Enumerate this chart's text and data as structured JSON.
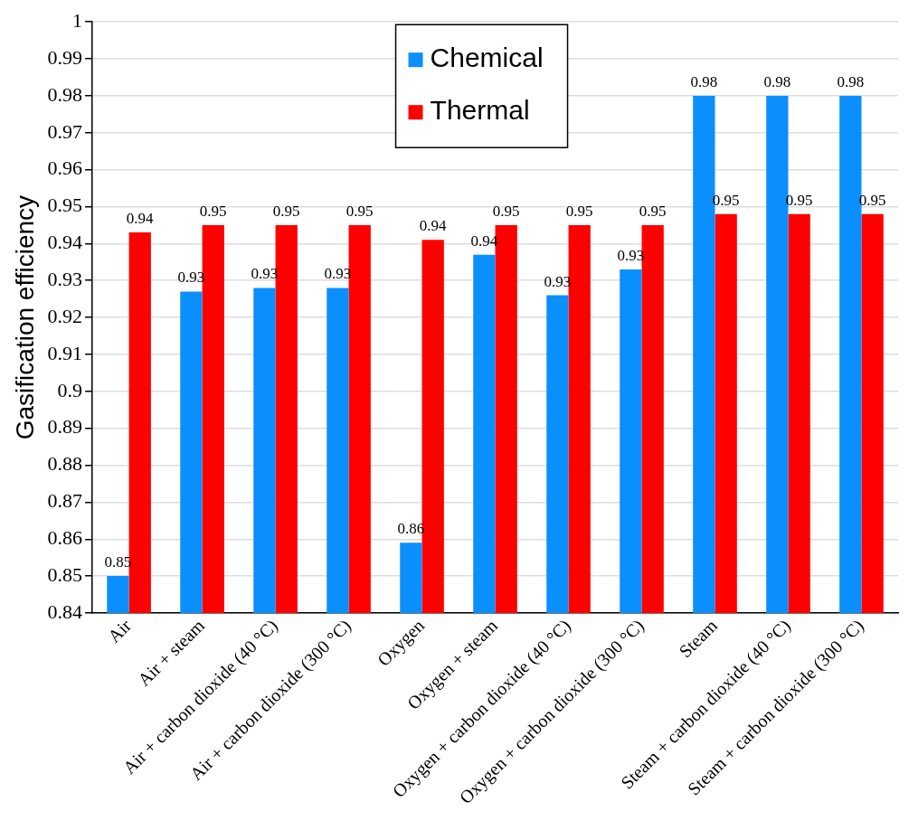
{
  "chart_data": {
    "type": "bar",
    "ylabel": "Gasification efficiency",
    "categories": [
      "Air",
      "Air + steam",
      "Air + carbon dioxide (40 °C)",
      "Air + carbon dioxide (300 °C)",
      "Oxygen",
      "Oxygen + steam",
      "Oxygen + carbon dioxide (40 °C)",
      "Oxygen + carbon dioxide (300 °C)",
      "Steam",
      "Steam + carbon dioxide (40 °C)",
      "Steam + carbon dioxide (300 °C)"
    ],
    "series": [
      {
        "name": "Chemical",
        "color": "#0a8ffc",
        "values": [
          0.85,
          0.927,
          0.928,
          0.928,
          0.859,
          0.937,
          0.926,
          0.933,
          0.98,
          0.98,
          0.98
        ],
        "value_labels": [
          "0.85",
          "0.93",
          "0.93",
          "0.93",
          "0.86",
          "0.94",
          "0.93",
          "0.93",
          "0.98",
          "0.98",
          "0.98"
        ]
      },
      {
        "name": "Thermal",
        "color": "#fe0000",
        "values": [
          0.943,
          0.945,
          0.945,
          0.945,
          0.941,
          0.945,
          0.945,
          0.945,
          0.948,
          0.948,
          0.948
        ],
        "value_labels": [
          "0.94",
          "0.95",
          "0.95",
          "0.95",
          "0.94",
          "0.95",
          "0.95",
          "0.95",
          "0.95",
          "0.95",
          "0.95"
        ]
      }
    ],
    "ylim": [
      0.84,
      1
    ],
    "yticks": [
      0.84,
      0.85,
      0.86,
      0.87,
      0.88,
      0.89,
      0.9,
      0.91,
      0.92,
      0.93,
      0.94,
      0.95,
      0.96,
      0.97,
      0.98,
      0.99,
      1
    ],
    "grid": "y",
    "legend": "top"
  }
}
